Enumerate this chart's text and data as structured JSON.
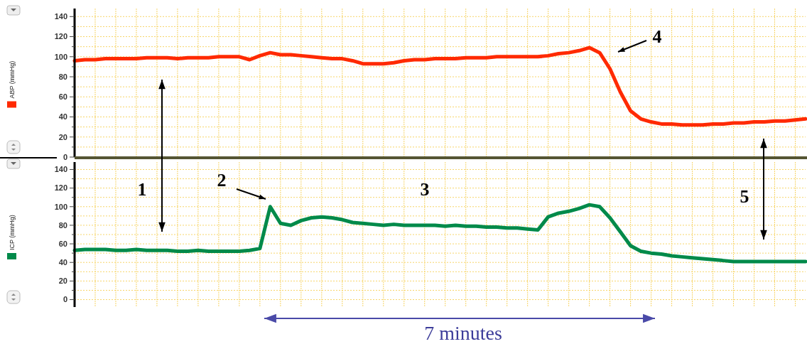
{
  "chart_data": [
    {
      "type": "line",
      "legend": "left",
      "categories": [
        null,
        null,
        null,
        null,
        null,
        null,
        null,
        null,
        null,
        null,
        null,
        null,
        null,
        null,
        null,
        null,
        null,
        null,
        null,
        null,
        null,
        null,
        null,
        null,
        null,
        null,
        null,
        null,
        null,
        null,
        null,
        null,
        null,
        null,
        null,
        null,
        null,
        null,
        null,
        null,
        null,
        null,
        null,
        null,
        null,
        null,
        null,
        null,
        null,
        null,
        null,
        null,
        null,
        null,
        null,
        null,
        null,
        null,
        null,
        null,
        null,
        null,
        null,
        null,
        null,
        null,
        null,
        null,
        null,
        null,
        null,
        null
      ],
      "series": [
        {
          "name": "ABP (mmHg)",
          "color": "#ff2a00",
          "values": [
            96,
            97,
            97,
            98,
            98,
            98,
            98,
            99,
            99,
            99,
            98,
            99,
            99,
            99,
            100,
            100,
            100,
            97,
            101,
            104,
            102,
            102,
            101,
            100,
            99,
            98,
            98,
            96,
            93,
            93,
            93,
            94,
            96,
            97,
            97,
            98,
            98,
            98,
            99,
            99,
            99,
            100,
            100,
            100,
            100,
            100,
            101,
            103,
            104,
            106,
            109,
            104,
            88,
            65,
            46,
            38,
            35,
            33,
            33,
            32,
            32,
            32,
            33,
            33,
            34,
            34,
            35,
            35,
            36,
            36,
            37,
            38
          ]
        }
      ],
      "ylim": [
        0,
        148
      ],
      "yticks": [
        0,
        {
          "value": 10,
          "label": null
        },
        20,
        {
          "value": 30,
          "label": null
        },
        40,
        {
          "value": 50,
          "label": null
        },
        60,
        {
          "value": 70,
          "label": null
        },
        80,
        {
          "value": 90,
          "label": null
        },
        100,
        {
          "value": 110,
          "label": null
        },
        120,
        {
          "value": 130,
          "label": null
        },
        140
      ],
      "grid": true,
      "tick_labels": "y",
      "annotations": [
        "4"
      ]
    },
    {
      "type": "line",
      "legend": "left",
      "categories": [
        null,
        null,
        null,
        null,
        null,
        null,
        null,
        null,
        null,
        null,
        null,
        null,
        null,
        null,
        null,
        null,
        null,
        null,
        null,
        null,
        null,
        null,
        null,
        null,
        null,
        null,
        null,
        null,
        null,
        null,
        null,
        null,
        null,
        null,
        null,
        null,
        null,
        null,
        null,
        null,
        null,
        null,
        null,
        null,
        null,
        null,
        null,
        null,
        null,
        null,
        null,
        null,
        null,
        null,
        null,
        null,
        null,
        null,
        null,
        null,
        null,
        null,
        null,
        null,
        null,
        null,
        null,
        null,
        null,
        null,
        null,
        null
      ],
      "series": [
        {
          "name": "ICP (mmHg)",
          "color": "#008a4a",
          "values": [
            53,
            54,
            54,
            54,
            53,
            53,
            54,
            53,
            53,
            53,
            52,
            52,
            53,
            52,
            52,
            52,
            52,
            53,
            55,
            100,
            82,
            80,
            85,
            88,
            89,
            88,
            86,
            83,
            82,
            81,
            80,
            81,
            80,
            80,
            80,
            80,
            79,
            80,
            79,
            79,
            78,
            78,
            77,
            77,
            76,
            75,
            89,
            93,
            95,
            98,
            102,
            100,
            88,
            73,
            58,
            52,
            50,
            49,
            47,
            46,
            45,
            44,
            43,
            42,
            41,
            41,
            41,
            41,
            41,
            41,
            41,
            41
          ]
        }
      ],
      "ylim": [
        -8,
        148
      ],
      "yticks": [
        0,
        {
          "value": 10,
          "label": null
        },
        20,
        {
          "value": 30,
          "label": null
        },
        40,
        {
          "value": 50,
          "label": null
        },
        60,
        {
          "value": 70,
          "label": null
        },
        80,
        {
          "value": 90,
          "label": null
        },
        100,
        {
          "value": 110,
          "label": null
        },
        120,
        {
          "value": 130,
          "label": null
        },
        140
      ],
      "grid": true,
      "tick_labels": "y",
      "annotations": [
        "1",
        "2",
        "3",
        "5",
        "7 minutes"
      ]
    }
  ]
}
